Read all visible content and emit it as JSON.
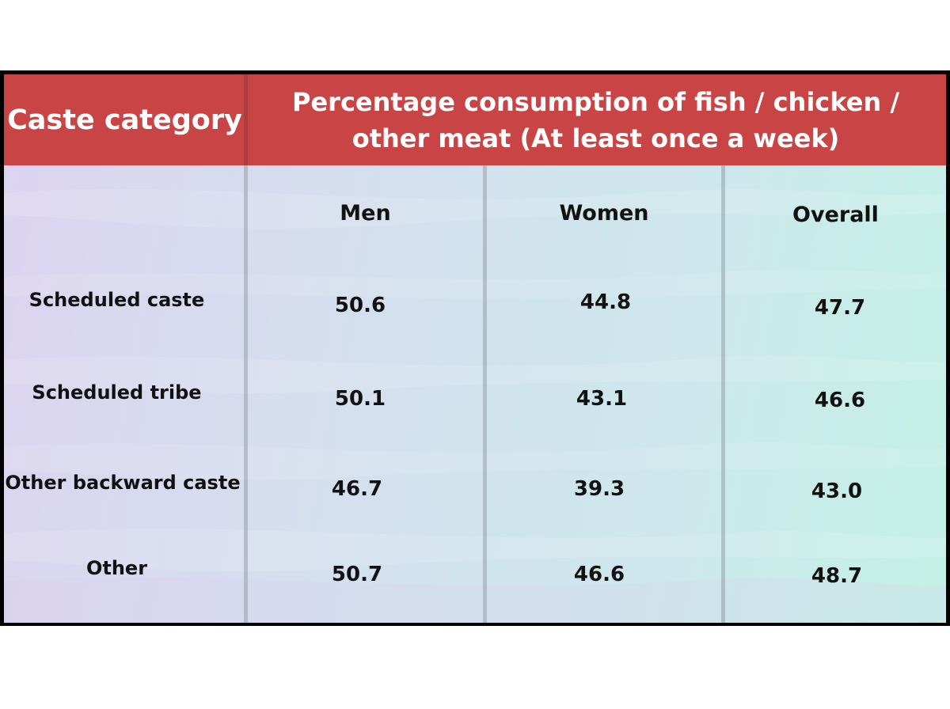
{
  "chart_data": {
    "type": "table",
    "header": {
      "row_label": "Caste category",
      "group_title": "Percentage consumption of fish / chicken / other meat (At least once a week)"
    },
    "columns": [
      "Men",
      "Women",
      "Overall"
    ],
    "rows": [
      {
        "label": "Scheduled caste",
        "values": [
          "50.6",
          "44.8",
          "47.7"
        ]
      },
      {
        "label": "Scheduled tribe",
        "values": [
          "50.1",
          "43.1",
          "46.6"
        ]
      },
      {
        "label": "Other backward caste",
        "values": [
          "46.7",
          "39.3",
          "43.0"
        ]
      },
      {
        "label": "Other",
        "values": [
          "50.7",
          "46.6",
          "48.7"
        ]
      }
    ],
    "colors": {
      "header_bg": "#c94545",
      "header_text": "#ffffff",
      "border": "#000000"
    }
  }
}
